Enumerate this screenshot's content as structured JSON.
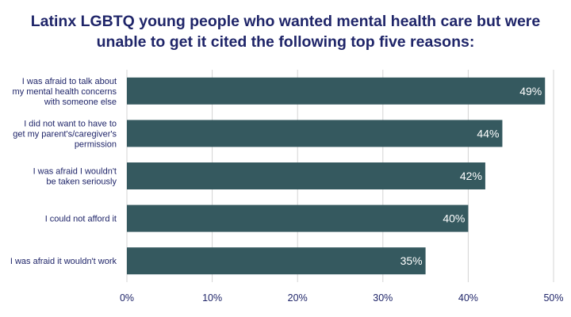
{
  "colors": {
    "title": "#1f2569",
    "bar": "#35595f",
    "grid": "#d4d4d4",
    "axis_text": "#1f2569",
    "value_label": "#ffffff"
  },
  "chart_data": {
    "type": "bar",
    "orientation": "horizontal",
    "title_lines": [
      "Latinx LGBTQ young people who wanted mental health care but were",
      "unable to get it cited the following top five reasons:"
    ],
    "categories": [
      [
        "I was afraid to talk about",
        "my mental health concerns",
        "with someone else"
      ],
      [
        "I did not want to have to",
        "get my parent's/caregiver's",
        "permission"
      ],
      [
        "I was afraid I wouldn't",
        "be taken seriously"
      ],
      [
        "I could not afford it"
      ],
      [
        "I was afraid it wouldn't work"
      ]
    ],
    "values": [
      49,
      44,
      42,
      40,
      35
    ],
    "value_labels": [
      "49%",
      "44%",
      "42%",
      "40%",
      "35%"
    ],
    "xlim": [
      0,
      50
    ],
    "xticks": [
      0,
      10,
      20,
      30,
      40,
      50
    ],
    "xtick_labels": [
      "0%",
      "10%",
      "20%",
      "30%",
      "40%",
      "50%"
    ],
    "grid": "vertical"
  }
}
